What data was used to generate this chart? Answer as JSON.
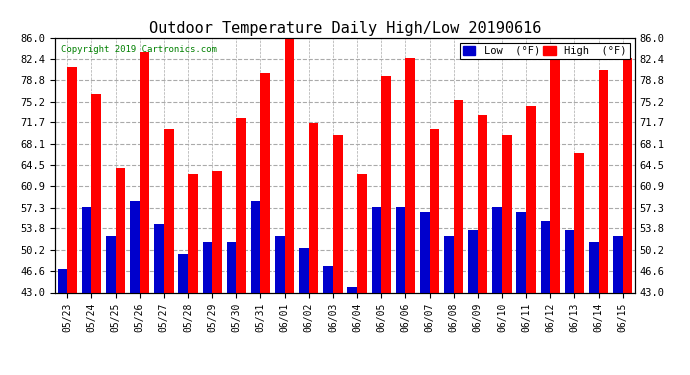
{
  "title": "Outdoor Temperature Daily High/Low 20190616",
  "copyright": "Copyright 2019 Cartronics.com",
  "categories": [
    "05/23",
    "05/24",
    "05/25",
    "05/26",
    "05/27",
    "05/28",
    "05/29",
    "05/30",
    "05/31",
    "06/01",
    "06/02",
    "06/03",
    "06/04",
    "06/05",
    "06/06",
    "06/07",
    "06/08",
    "06/09",
    "06/10",
    "06/11",
    "06/12",
    "06/13",
    "06/14",
    "06/15"
  ],
  "highs": [
    81.0,
    76.5,
    64.0,
    83.5,
    70.5,
    63.0,
    63.5,
    72.5,
    80.0,
    86.0,
    71.5,
    69.5,
    63.0,
    79.5,
    82.5,
    70.5,
    75.5,
    73.0,
    69.5,
    74.5,
    82.5,
    66.5,
    80.5,
    82.5
  ],
  "lows": [
    47.0,
    57.5,
    52.5,
    58.5,
    54.5,
    49.5,
    51.5,
    51.5,
    58.5,
    52.5,
    50.5,
    47.5,
    44.0,
    57.5,
    57.5,
    56.5,
    52.5,
    53.5,
    57.5,
    56.5,
    55.0,
    53.5,
    51.5,
    52.5
  ],
  "ymin": 43.0,
  "ymax": 86.0,
  "yticks": [
    43.0,
    46.6,
    50.2,
    53.8,
    57.3,
    60.9,
    64.5,
    68.1,
    71.7,
    75.2,
    78.8,
    82.4,
    86.0
  ],
  "high_color": "#ff0000",
  "low_color": "#0000cc",
  "bg_color": "#ffffff",
  "grid_color": "#aaaaaa",
  "title_fontsize": 11,
  "legend_low_label": "Low  (°F)",
  "legend_high_label": "High  (°F)",
  "bar_width": 0.4
}
